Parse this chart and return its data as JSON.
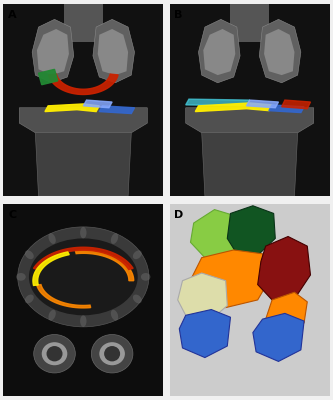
{
  "fig_width": 3.33,
  "fig_height": 4.0,
  "dpi": 100,
  "background_color": "#f0f0f0",
  "panel_labels": [
    "A",
    "B",
    "C",
    "D"
  ],
  "panel_label_color": "#000000",
  "panel_label_fontsize": 8,
  "panel_label_fontweight": "bold",
  "colors": {
    "red": "#cc2200",
    "orange": "#ff8800",
    "yellow": "#ffee00",
    "blue": "#3366cc",
    "light_blue": "#88aaff",
    "cyan": "#44ccdd",
    "green": "#228833",
    "light_green": "#88cc44",
    "dark_green": "#115522",
    "cream": "#ddddaa",
    "dark_red": "#881111"
  }
}
